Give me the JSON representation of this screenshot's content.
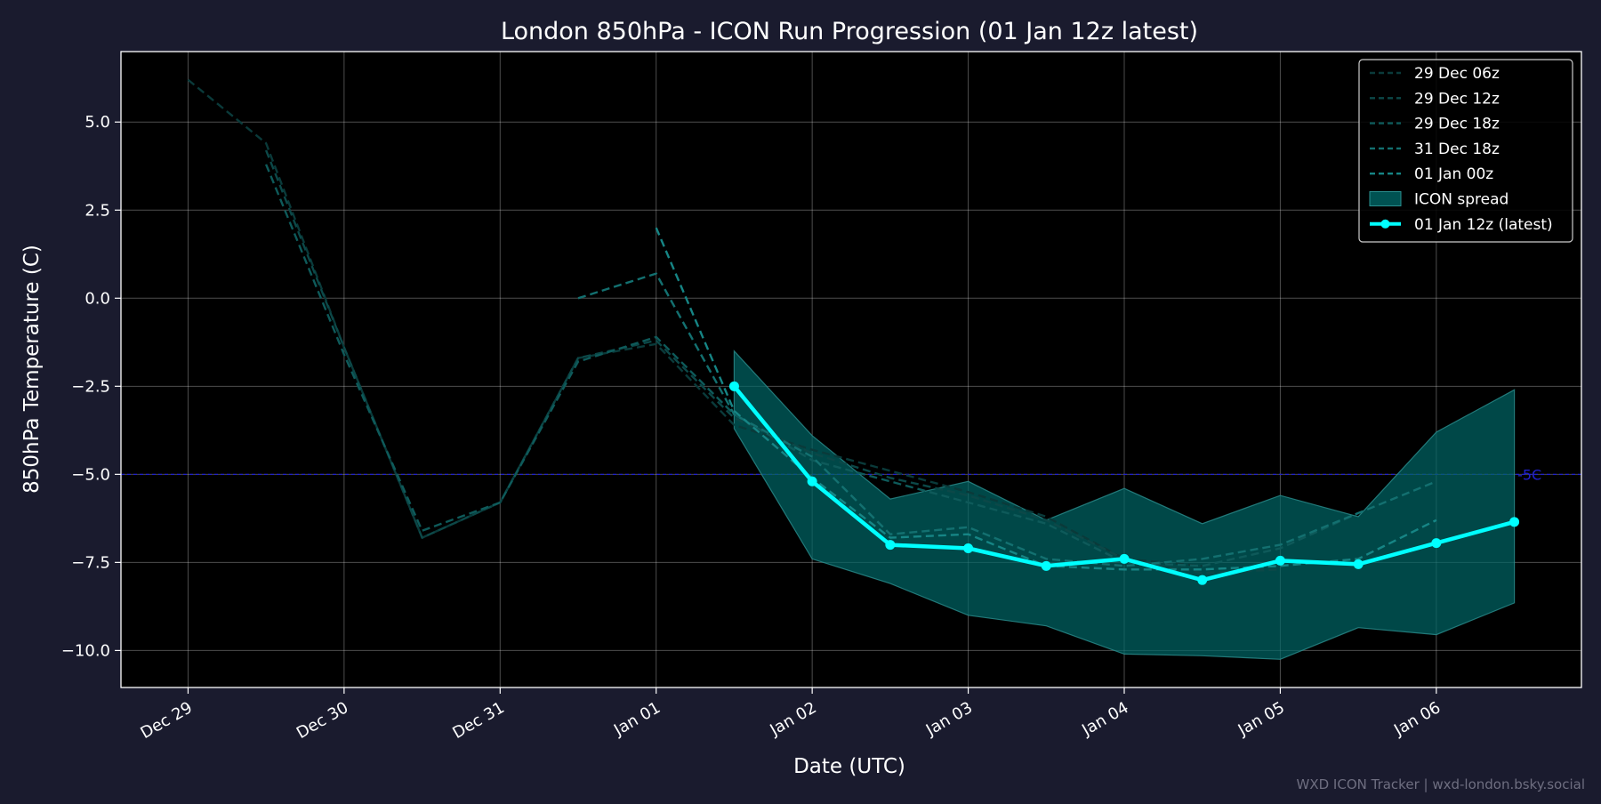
{
  "chart_data": {
    "type": "line",
    "title": "London 850hPa - ICON Run Progression (01 Jan 12z latest)",
    "xlabel": "Date (UTC)",
    "ylabel": "850hPa Temperature (C)",
    "xlim": [
      -0.43,
      8.93
    ],
    "ylim": [
      -11.05,
      7.0
    ],
    "x_ticks": [
      {
        "x": 0,
        "label": "Dec 29"
      },
      {
        "x": 1,
        "label": "Dec 30"
      },
      {
        "x": 2,
        "label": "Dec 31"
      },
      {
        "x": 3,
        "label": "Jan 01"
      },
      {
        "x": 4,
        "label": "Jan 02"
      },
      {
        "x": 5,
        "label": "Jan 03"
      },
      {
        "x": 6,
        "label": "Jan 04"
      },
      {
        "x": 7,
        "label": "Jan 05"
      },
      {
        "x": 8,
        "label": "Jan 06"
      }
    ],
    "y_ticks": [
      5.0,
      2.5,
      0.0,
      -2.5,
      -5.0,
      -7.5,
      -10.0
    ],
    "y_tick_labels": [
      "5.0",
      "2.5",
      "0.0",
      "−2.5",
      "−5.0",
      "−7.5",
      "−10.0"
    ],
    "x_unit_note": "x in days since 29 Dec 00z",
    "grid": true,
    "legend_position": "top-right",
    "reference_line": {
      "y": -5.0,
      "label": "-5C",
      "color": "#2020cc"
    },
    "colors": {
      "background": "#1a1b2e",
      "plot_background": "#000000",
      "latest": "#00ffff",
      "spread_fill": "#006666",
      "text": "#ffffff"
    },
    "series": [
      {
        "name": "29 Dec 06z",
        "style": "dashed",
        "color": "#0a3a3a",
        "x": [
          0,
          0.5,
          1,
          1.5,
          2,
          2.5,
          3,
          3.5,
          4,
          4.5,
          5,
          5.5,
          6,
          6.5
        ],
        "values": [
          6.2,
          4.4,
          -1.4,
          -6.8,
          -5.8,
          -1.7,
          -1.3,
          -3.6,
          -4.3,
          -4.9,
          -5.5,
          -6.2,
          -7.4,
          -7.6
        ]
      },
      {
        "name": "29 Dec 12z",
        "style": "dashed",
        "color": "#0c4848",
        "x": [
          0.5,
          1,
          1.5,
          2,
          2.5,
          3,
          3.5,
          4,
          4.5,
          5,
          5.5,
          6,
          6.5,
          7
        ],
        "values": [
          4.2,
          -1.4,
          -6.8,
          -5.8,
          -1.7,
          -1.2,
          -3.4,
          -4.4,
          -5.1,
          -5.6,
          -6.3,
          -7.4,
          -7.8,
          -7.7
        ]
      },
      {
        "name": "29 Dec 18z",
        "style": "dashed",
        "color": "#0e5a5a",
        "x": [
          0.5,
          1,
          1.5,
          2,
          2.5,
          3,
          3.5,
          4,
          4.5,
          5,
          5.5,
          6,
          6.5,
          7,
          7.5
        ],
        "values": [
          3.8,
          -1.6,
          -6.6,
          -5.8,
          -1.8,
          -1.1,
          -3.3,
          -4.6,
          -5.2,
          -5.8,
          -6.4,
          -7.5,
          -7.6,
          -7.1,
          -6.1
        ]
      },
      {
        "name": "31 Dec 18z",
        "style": "dashed",
        "color": "#137070",
        "x": [
          2.5,
          3,
          3.5,
          4,
          4.5,
          5,
          5.5,
          6,
          6.5,
          7,
          7.5,
          8
        ],
        "values": [
          0.0,
          0.7,
          -3.3,
          -4.5,
          -6.7,
          -6.5,
          -7.4,
          -7.6,
          -7.4,
          -7.0,
          -6.1,
          -5.2
        ]
      },
      {
        "name": "01 Jan 00z",
        "style": "dashed",
        "color": "#168585",
        "x": [
          3,
          3.5,
          4,
          4.5,
          5,
          5.5,
          6,
          6.5,
          7,
          7.5,
          8
        ],
        "values": [
          2.0,
          -3.2,
          -5.1,
          -6.8,
          -6.7,
          -7.6,
          -7.7,
          -7.7,
          -7.6,
          -7.4,
          -6.3
        ]
      }
    ],
    "spread": {
      "name": "ICON spread",
      "x": [
        3.5,
        4,
        4.5,
        5,
        5.5,
        6,
        6.5,
        7,
        7.5,
        8,
        8.5
      ],
      "upper": [
        -1.5,
        -3.9,
        -5.7,
        -5.2,
        -6.3,
        -5.4,
        -6.4,
        -5.6,
        -6.2,
        -3.8,
        -2.6
      ],
      "lower": [
        -3.7,
        -7.4,
        -8.1,
        -9.0,
        -9.3,
        -10.1,
        -10.15,
        -10.25,
        -9.35,
        -9.55,
        -8.65
      ]
    },
    "latest": {
      "name": "01 Jan 12z (latest)",
      "x": [
        3.5,
        4,
        4.5,
        5,
        5.5,
        6,
        6.5,
        7,
        7.5,
        8,
        8.5
      ],
      "values": [
        -2.5,
        -5.2,
        -7.0,
        -7.1,
        -7.6,
        -7.4,
        -8.0,
        -7.45,
        -7.55,
        -6.95,
        -6.35
      ]
    },
    "legend": [
      {
        "label": "29 Dec 06z",
        "kind": "dash",
        "color": "#0a3a3a"
      },
      {
        "label": "29 Dec 12z",
        "kind": "dash",
        "color": "#0c4848"
      },
      {
        "label": "29 Dec 18z",
        "kind": "dash",
        "color": "#0e5a5a"
      },
      {
        "label": "31 Dec 18z",
        "kind": "dash",
        "color": "#137070"
      },
      {
        "label": "01 Jan 00z",
        "kind": "dash",
        "color": "#168585"
      },
      {
        "label": "ICON spread",
        "kind": "patch",
        "color": "#006666"
      },
      {
        "label": "01 Jan 12z (latest)",
        "kind": "marker",
        "color": "#00ffff"
      }
    ]
  },
  "footer": {
    "credit": "WXD ICON Tracker | wxd-london.bsky.social"
  }
}
